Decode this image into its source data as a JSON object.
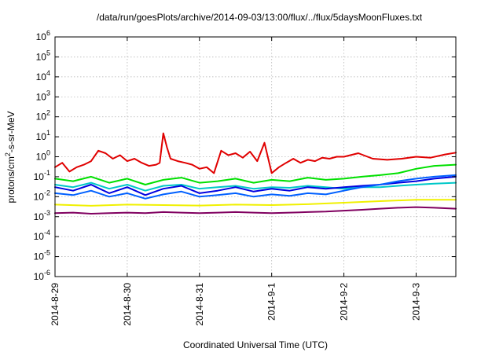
{
  "chart_data": {
    "type": "line",
    "title": "/data/run/goesPlots/archive/2014-09-03/13:00/flux/../flux/5daysMoonFluxes.txt",
    "xlabel": "Coordinated Universal Time (UTC)",
    "ylabel": "protons/cm²-s-sr-MeV",
    "ylabel_parts": {
      "pre": "protons/cm",
      "sup": "2",
      "post": "-s-sr-MeV"
    },
    "yscale": "log",
    "ylim_exponents": [
      -6,
      6
    ],
    "y_ticks": [
      {
        "base": "10",
        "exp": "6"
      },
      {
        "base": "10",
        "exp": "5"
      },
      {
        "base": "10",
        "exp": "4"
      },
      {
        "base": "10",
        "exp": "3"
      },
      {
        "base": "10",
        "exp": "2"
      },
      {
        "base": "10",
        "exp": "1"
      },
      {
        "base": "10",
        "exp": "0"
      },
      {
        "base": "10",
        "exp": "-1"
      },
      {
        "base": "10",
        "exp": "-2"
      },
      {
        "base": "10",
        "exp": "-3"
      },
      {
        "base": "10",
        "exp": "-4"
      },
      {
        "base": "10",
        "exp": "-5"
      },
      {
        "base": "10",
        "exp": "-6"
      }
    ],
    "xlim_days": [
      0,
      5.55
    ],
    "x_ticks": [
      "2014-8-29",
      "2014-8-30",
      "2014-8-31",
      "2014-9-1",
      "2014-9-2",
      "2014-9-3"
    ],
    "grid": true,
    "series": [
      {
        "color": "#e00000",
        "x": [
          0,
          0.1,
          0.2,
          0.3,
          0.4,
          0.5,
          0.6,
          0.7,
          0.8,
          0.9,
          1.0,
          1.1,
          1.2,
          1.3,
          1.4,
          1.45,
          1.5,
          1.55,
          1.6,
          1.7,
          1.8,
          1.9,
          2.0,
          2.1,
          2.2,
          2.3,
          2.4,
          2.5,
          2.6,
          2.7,
          2.8,
          2.9,
          3.0,
          3.1,
          3.2,
          3.3,
          3.4,
          3.5,
          3.6,
          3.7,
          3.8,
          3.9,
          4.0,
          4.2,
          4.4,
          4.6,
          4.8,
          5.0,
          5.2,
          5.4,
          5.55
        ],
        "y": [
          0.3,
          0.5,
          0.18,
          0.3,
          0.4,
          0.6,
          2.0,
          1.5,
          0.8,
          1.2,
          0.6,
          0.8,
          0.5,
          0.35,
          0.4,
          0.5,
          15,
          3,
          0.8,
          0.6,
          0.5,
          0.4,
          0.25,
          0.3,
          0.15,
          2.0,
          1.2,
          1.5,
          0.9,
          1.8,
          0.6,
          5.0,
          0.15,
          0.3,
          0.5,
          0.8,
          0.5,
          0.7,
          0.6,
          0.9,
          0.8,
          1.0,
          1.0,
          1.5,
          0.8,
          0.7,
          0.8,
          1.0,
          0.9,
          1.3,
          1.6
        ]
      },
      {
        "color": "#00e000",
        "x": [
          0,
          0.25,
          0.5,
          0.75,
          1.0,
          1.25,
          1.5,
          1.75,
          2.0,
          2.25,
          2.5,
          2.75,
          3.0,
          3.25,
          3.5,
          3.75,
          4.0,
          4.25,
          4.5,
          4.75,
          5.0,
          5.25,
          5.55
        ],
        "y": [
          0.08,
          0.06,
          0.1,
          0.05,
          0.08,
          0.04,
          0.07,
          0.09,
          0.05,
          0.06,
          0.08,
          0.05,
          0.07,
          0.06,
          0.09,
          0.07,
          0.08,
          0.1,
          0.12,
          0.15,
          0.25,
          0.35,
          0.4
        ]
      },
      {
        "color": "#00c8c8",
        "x": [
          0,
          0.25,
          0.5,
          0.75,
          1.0,
          1.25,
          1.5,
          1.75,
          2.0,
          2.25,
          2.5,
          2.75,
          3.0,
          3.25,
          3.5,
          3.75,
          4.0,
          4.25,
          4.5,
          4.75,
          5.0,
          5.25,
          5.55
        ],
        "y": [
          0.04,
          0.03,
          0.05,
          0.025,
          0.04,
          0.02,
          0.035,
          0.04,
          0.025,
          0.03,
          0.035,
          0.025,
          0.03,
          0.028,
          0.035,
          0.03,
          0.025,
          0.03,
          0.03,
          0.035,
          0.04,
          0.045,
          0.05
        ]
      },
      {
        "color": "#0000e0",
        "x": [
          0,
          0.25,
          0.5,
          0.75,
          1.0,
          1.25,
          1.5,
          1.75,
          2.0,
          2.25,
          2.5,
          2.75,
          3.0,
          3.25,
          3.5,
          3.75,
          4.0,
          4.25,
          4.5,
          4.75,
          5.0,
          5.25,
          5.55
        ],
        "y": [
          0.03,
          0.02,
          0.04,
          0.015,
          0.03,
          0.012,
          0.025,
          0.035,
          0.015,
          0.02,
          0.03,
          0.018,
          0.025,
          0.02,
          0.03,
          0.025,
          0.03,
          0.035,
          0.04,
          0.05,
          0.06,
          0.08,
          0.1
        ]
      },
      {
        "color": "#0060ff",
        "x": [
          0,
          0.25,
          0.5,
          0.75,
          1.0,
          1.25,
          1.5,
          1.75,
          2.0,
          2.25,
          2.5,
          2.75,
          3.0,
          3.25,
          3.5,
          3.75,
          4.0,
          4.25,
          4.5,
          4.75,
          5.0,
          5.25,
          5.55
        ],
        "y": [
          0.015,
          0.012,
          0.02,
          0.01,
          0.015,
          0.008,
          0.013,
          0.018,
          0.01,
          0.012,
          0.015,
          0.01,
          0.013,
          0.011,
          0.015,
          0.013,
          0.02,
          0.03,
          0.04,
          0.06,
          0.08,
          0.1,
          0.12
        ]
      },
      {
        "color": "#f0f000",
        "x": [
          0,
          0.5,
          1.0,
          1.5,
          2.0,
          2.5,
          3.0,
          3.5,
          4.0,
          4.5,
          5.0,
          5.55
        ],
        "y": [
          0.004,
          0.0035,
          0.004,
          0.0038,
          0.0036,
          0.004,
          0.0038,
          0.0042,
          0.005,
          0.006,
          0.007,
          0.007
        ]
      },
      {
        "color": "#800060",
        "x": [
          0,
          0.25,
          0.5,
          0.75,
          1.0,
          1.25,
          1.5,
          1.75,
          2.0,
          2.25,
          2.5,
          2.75,
          3.0,
          3.25,
          3.5,
          3.75,
          4.0,
          4.25,
          4.5,
          4.75,
          5.0,
          5.25,
          5.55
        ],
        "y": [
          0.0015,
          0.0016,
          0.0014,
          0.0015,
          0.0016,
          0.0015,
          0.0017,
          0.0016,
          0.0015,
          0.0016,
          0.0017,
          0.0016,
          0.0015,
          0.0016,
          0.0017,
          0.0018,
          0.002,
          0.0022,
          0.0025,
          0.0028,
          0.003,
          0.0028,
          0.0025
        ]
      }
    ]
  }
}
